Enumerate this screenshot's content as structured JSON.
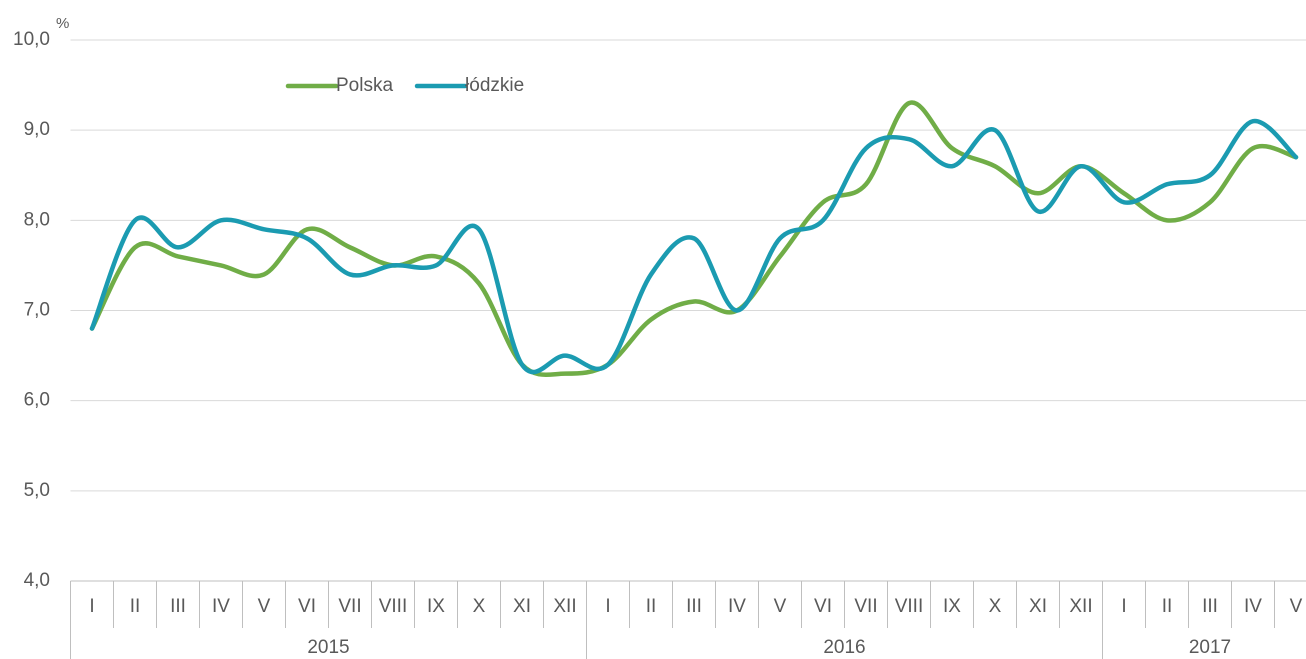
{
  "chart_data": {
    "type": "line",
    "y_unit": "%",
    "category_groups": [
      {
        "label": "2015",
        "categories": [
          "I",
          "II",
          "III",
          "IV",
          "V",
          "VI",
          "VII",
          "VIII",
          "IX",
          "X",
          "XI",
          "XII"
        ]
      },
      {
        "label": "2016",
        "categories": [
          "I",
          "II",
          "III",
          "IV",
          "V",
          "VI",
          "VII",
          "VIII",
          "IX",
          "X",
          "XI",
          "XII"
        ]
      },
      {
        "label": "2017",
        "categories": [
          "I",
          "II",
          "III",
          "IV",
          "V"
        ]
      }
    ],
    "series": [
      {
        "name": "Polska",
        "color": "#70ad47",
        "values": [
          6.8,
          7.7,
          7.6,
          7.5,
          7.4,
          7.9,
          7.7,
          7.5,
          7.6,
          7.3,
          6.4,
          6.3,
          6.4,
          6.9,
          7.1,
          7.0,
          7.6,
          8.2,
          8.4,
          9.3,
          8.8,
          8.6,
          8.3,
          8.6,
          8.3,
          8.0,
          8.2,
          8.8,
          8.7
        ]
      },
      {
        "name": "łódzkie",
        "color": "#1b9bb1",
        "values": [
          6.8,
          8.0,
          7.7,
          8.0,
          7.9,
          7.8,
          7.4,
          7.5,
          7.5,
          7.9,
          6.4,
          6.5,
          6.4,
          7.4,
          7.8,
          7.0,
          7.8,
          8.0,
          8.8,
          8.9,
          8.6,
          9.0,
          8.1,
          8.6,
          8.2,
          8.4,
          8.5,
          9.1,
          8.7
        ]
      }
    ],
    "ylim": [
      4,
      10
    ],
    "yticks": [
      {
        "value": 4,
        "label": "4,0"
      },
      {
        "value": 5,
        "label": "5,0"
      },
      {
        "value": 6,
        "label": "6,0"
      },
      {
        "value": 7,
        "label": "7,0"
      },
      {
        "value": 8,
        "label": "8,0"
      },
      {
        "value": 9,
        "label": "9,0"
      },
      {
        "value": 10,
        "label": "10,0"
      }
    ],
    "grid": true,
    "legend": "top-left"
  }
}
